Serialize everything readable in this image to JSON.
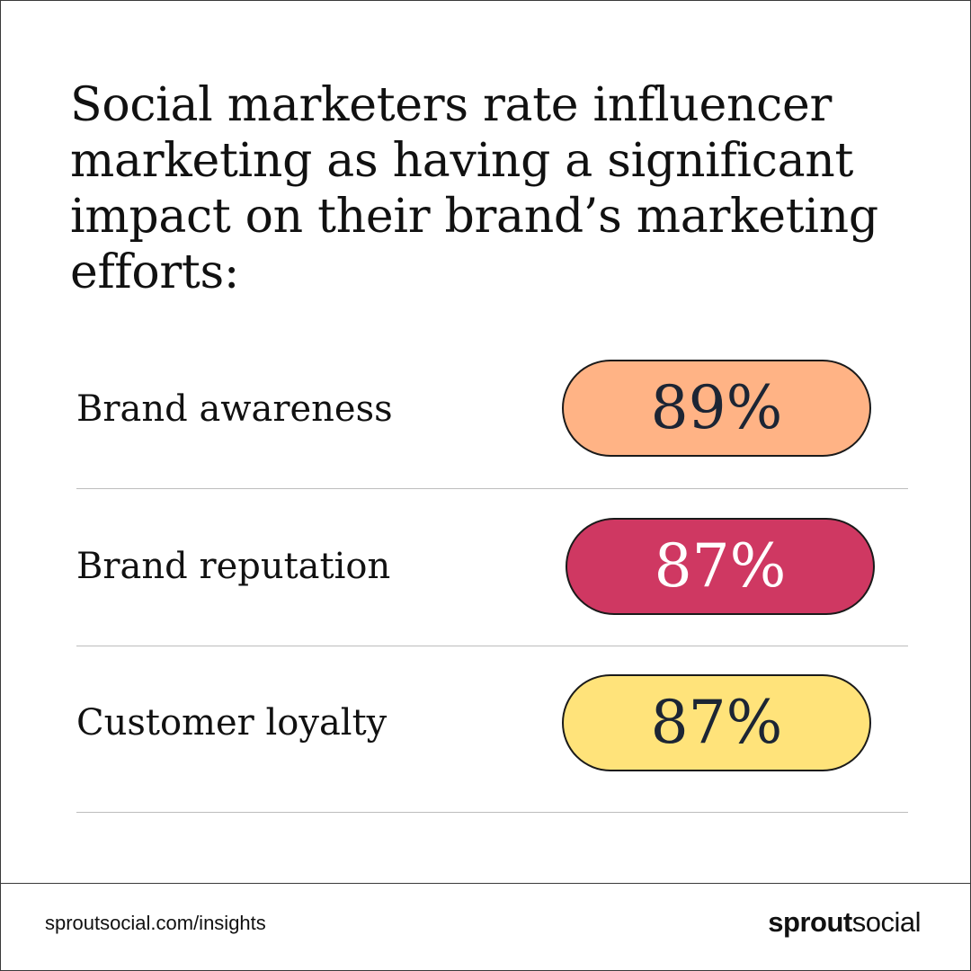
{
  "title": "Social marketers rate influencer marketing as having a significant impact on their brand’s marketing efforts:",
  "rows": [
    {
      "label": "Brand awareness",
      "value": "89%",
      "percent": 89,
      "pill_color": "#ffb385",
      "text_color": "#1c2534"
    },
    {
      "label": "Brand reputation",
      "value": "87%",
      "percent": 87,
      "pill_color": "#cf3862",
      "text_color": "#ffffff"
    },
    {
      "label": "Customer loyalty",
      "value": "87%",
      "percent": 87,
      "pill_color": "#ffe37a",
      "text_color": "#1c2534"
    }
  ],
  "footer": {
    "url": "sproutsocial.com/insights",
    "logo_bold": "sprout",
    "logo_light": "social"
  }
}
